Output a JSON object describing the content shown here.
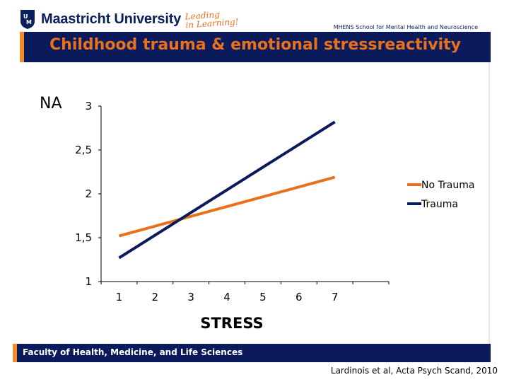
{
  "header": {
    "university": "Maastricht University",
    "slogan_line1": "Leading",
    "slogan_line2": "in Learning!",
    "school": "MHENS School for Mental Health and Neuroscience"
  },
  "slide": {
    "title": "Childhood trauma & emotional stressreactivity"
  },
  "footer": {
    "faculty": "Faculty of Health, Medicine, and Life Sciences",
    "citation": "Lardinois et al, Acta Psych Scand, 2010"
  },
  "colors": {
    "brand_navy": "#0a1a5a",
    "brand_orange": "#e8711d"
  },
  "chart_data": {
    "type": "line",
    "title": "",
    "ylabel": "NA",
    "xlabel": "STRESS",
    "x_ticks": [
      "1",
      "2",
      "3",
      "4",
      "5",
      "6",
      "7"
    ],
    "y_ticks": [
      "1",
      "1,5",
      "2",
      "2,5",
      "3"
    ],
    "xlim": [
      0.5,
      8.5
    ],
    "ylim": [
      1,
      3
    ],
    "grid": false,
    "legend_position": "right",
    "series": [
      {
        "name": "No Trauma",
        "color": "#e8711d",
        "x": [
          1,
          7
        ],
        "y": [
          1.52,
          2.19
        ]
      },
      {
        "name": "Trauma",
        "color": "#0a1a5a",
        "x": [
          1,
          7
        ],
        "y": [
          1.27,
          2.82
        ]
      }
    ]
  }
}
